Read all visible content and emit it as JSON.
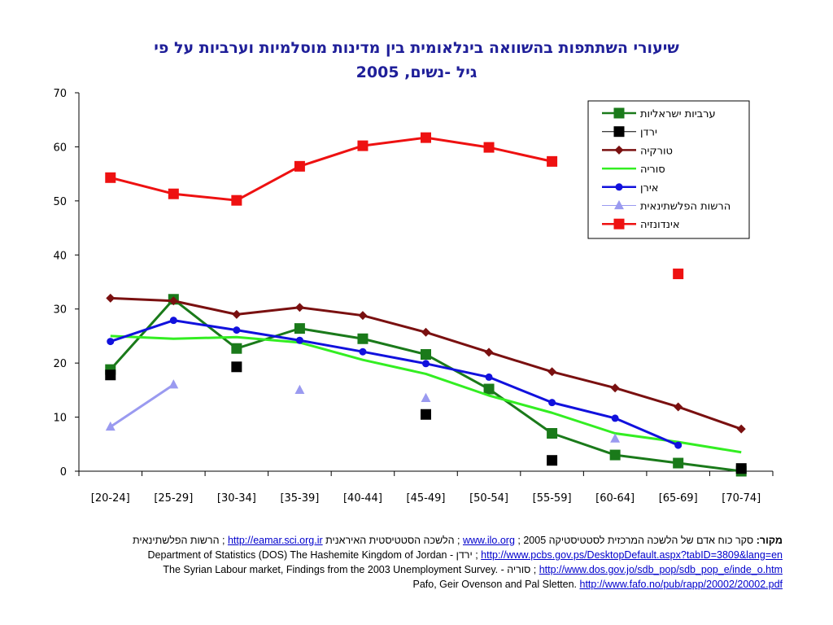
{
  "title": {
    "line1": "שיעורי השתתפות בהשוואה בינלאומית בין מדינות מוסלמיות וערביות על פי",
    "line2": "גיל -נשים, 2005"
  },
  "chart_data": {
    "type": "line",
    "categories": [
      "[20-24]",
      "[25-29]",
      "[30-34]",
      "[35-39]",
      "[40-44]",
      "[45-49]",
      "[50-54]",
      "[55-59]",
      "[60-64]",
      "[65-69]",
      "[70-74]"
    ],
    "ylim": [
      0,
      70
    ],
    "yticks": [
      0,
      10,
      20,
      30,
      40,
      50,
      60,
      70
    ],
    "grid": false,
    "legend_position": "top-right",
    "series": [
      {
        "name": "ערביות ישראליות",
        "color": "#1a7a1a",
        "marker": "square",
        "line": true,
        "values": [
          18.8,
          31.8,
          22.7,
          26.4,
          24.5,
          21.6,
          15.2,
          7.0,
          3.0,
          1.5,
          0.0
        ]
      },
      {
        "name": "ירדן",
        "color": "#000000",
        "marker": "square",
        "line": false,
        "values": [
          17.8,
          null,
          19.3,
          null,
          null,
          10.5,
          null,
          2.0,
          null,
          null,
          0.5
        ]
      },
      {
        "name": "טורקיה",
        "color": "#7a1010",
        "marker": "diamond",
        "line": true,
        "values": [
          32.0,
          31.5,
          29.0,
          30.3,
          28.8,
          25.7,
          22.0,
          18.4,
          15.4,
          11.9,
          7.8
        ]
      },
      {
        "name": "סוריה",
        "color": "#33ee22",
        "marker": "dash",
        "line": true,
        "values": [
          25.0,
          24.5,
          24.8,
          23.8,
          20.6,
          18.0,
          14.0,
          10.8,
          7.0,
          5.4,
          3.5
        ]
      },
      {
        "name": "אירן",
        "color": "#1111dd",
        "marker": "circle",
        "line": true,
        "values": [
          24.0,
          27.9,
          26.1,
          24.2,
          22.1,
          19.9,
          17.4,
          12.7,
          9.8,
          4.8,
          null
        ]
      },
      {
        "name": "הרשות הפלשתינאית",
        "color": "#9a9af0",
        "marker": "triangle",
        "line": false,
        "line_segments": [
          [
            0,
            1
          ]
        ],
        "values": [
          8.2,
          16.0,
          null,
          15.0,
          null,
          13.5,
          null,
          null,
          6.0,
          null,
          null
        ]
      },
      {
        "name": "אינדונזיה",
        "color": "#ee1111",
        "marker": "square",
        "line": true,
        "line_until": 7,
        "values": [
          54.3,
          51.3,
          50.1,
          56.4,
          60.2,
          61.7,
          59.9,
          57.3,
          null,
          36.5,
          null
        ]
      }
    ]
  },
  "sources": {
    "line1": {
      "prefix": "מקור:",
      "t1": " סקר כוח אדם של הלשכה המרכזית לסטטיסטיקה 2005 ; ",
      "link1": "www.ilo.org",
      "t2": " ; הלשכה הסטטיסטית האיראנית ",
      "link2": "http://eamar.sci.org.ir",
      "t3": " ; הרשות הפלשתינאית"
    },
    "line2": {
      "text": "Department of Statistics (DOS) The Hashemite Kingdom of Jordan - ירדן ; ",
      "link": "http://www.pcbs.gov.ps/DesktopDefault.aspx?tabID=3809&lang=en"
    },
    "line3": {
      "text": "The Syrian Labour market, Findings from the 2003 Unemployment Survey. - סוריה ; ",
      "link": "http://www.dos.gov.jo/sdb_pop/sdb_pop_e/inde_o.htm"
    },
    "line4": {
      "text": "Pafo, Geir Ovenson and Pal Sletten. ",
      "link": "http://www.fafo.no/pub/rapp/20002/20002.pdf"
    }
  }
}
